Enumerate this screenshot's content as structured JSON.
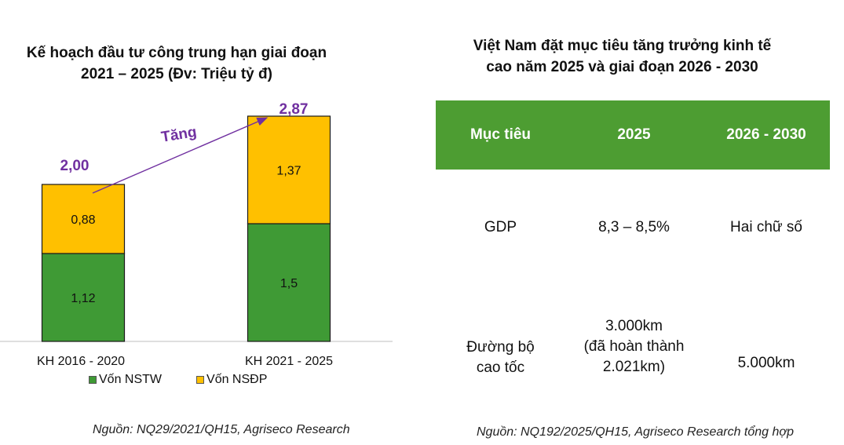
{
  "left_title": "Kế hoạch đầu tư công trung hạn giai đoạn\n2021 – 2025 (Đv: Triệu tỷ đ)",
  "chart_data": {
    "type": "bar",
    "stacked": true,
    "title": "Kế hoạch đầu tư công trung hạn giai đoạn 2021 – 2025 (Đv: Triệu tỷ đ)",
    "categories": [
      "KH 2016 - 2020",
      "KH 2021 - 2025"
    ],
    "series": [
      {
        "name": "Vốn NSTW",
        "values": [
          1.12,
          1.5
        ],
        "labels": [
          "1,12",
          "1,5"
        ],
        "color": "#3f9a35"
      },
      {
        "name": "Vốn NSĐP",
        "values": [
          0.88,
          1.37
        ],
        "labels": [
          "0,88",
          "1,37"
        ],
        "color": "#ffc000"
      }
    ],
    "totals": [
      2.0,
      2.87
    ],
    "total_labels": [
      "2,00",
      "2,87"
    ],
    "annotation": "Tăng",
    "annotation_color": "#7030a0",
    "ylim": [
      0,
      3.1
    ],
    "grid": false,
    "legend_position": "bottom"
  },
  "table": {
    "title": "Việt Nam đặt mục tiêu tăng trưởng kinh tế\ncao năm 2025 và giai đoạn 2026 - 2030",
    "headers": [
      "Mục tiêu",
      "2025",
      "2026  - 2030"
    ],
    "header_color": "#4d9d32",
    "rows": [
      [
        "GDP",
        "8,3 – 8,5%",
        "Hai chữ số"
      ],
      [
        "Đường bộ\ncao tốc",
        "3.000km\n(đã hoàn thành\n2.021km)",
        "5.000km"
      ]
    ]
  },
  "source_left": "Nguồn: NQ29/2021/QH15, Agriseco Research",
  "source_right": "Nguồn: NQ192/2025/QH15, Agriseco Research tổng hợp"
}
